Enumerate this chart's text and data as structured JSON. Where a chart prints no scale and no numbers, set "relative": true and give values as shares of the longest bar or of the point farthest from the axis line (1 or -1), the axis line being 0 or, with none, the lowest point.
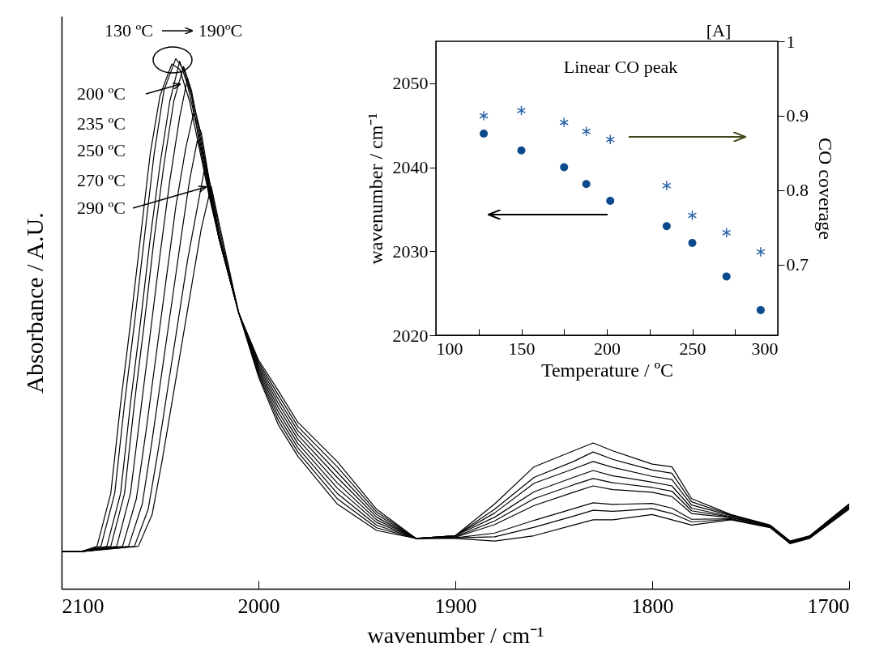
{
  "chart_data": [
    {
      "type": "line",
      "xlabel": "wavenumber / cm⁻¹",
      "ylabel": "Absorbance / A.U.",
      "relative": true,
      "tick_labels": "x",
      "xlim": [
        2100,
        1700
      ],
      "xticks": [
        2100,
        2000,
        1900,
        1800,
        1700
      ],
      "annotations": [
        "130 ºC",
        "190ºC",
        "200 ºC",
        "235 ºC",
        "250 ºC",
        "270 ºC",
        "290 ºC"
      ],
      "series": [
        {
          "color": "#000000",
          "x": [
            2100,
            2090,
            2082,
            2075,
            2070,
            2065,
            2060,
            2055,
            2050,
            2044,
            2040,
            2035,
            2030,
            2025,
            2020,
            2010,
            2000,
            1990,
            1980,
            1960,
            1940,
            1920,
            1900,
            1880,
            1860,
            1840,
            1830,
            1820,
            1800,
            1790,
            1780,
            1760,
            1740,
            1730,
            1720,
            1700
          ],
          "values": [
            0.07,
            0.07,
            0.08,
            0.18,
            0.35,
            0.5,
            0.66,
            0.82,
            0.93,
            0.99,
            0.98,
            0.92,
            0.83,
            0.74,
            0.66,
            0.52,
            0.4,
            0.31,
            0.25,
            0.16,
            0.11,
            0.095,
            0.1,
            0.16,
            0.23,
            0.26,
            0.275,
            0.26,
            0.235,
            0.23,
            0.17,
            0.14,
            0.12,
            0.09,
            0.1,
            0.16
          ]
        },
        {
          "color": "#000000",
          "x": [
            2100,
            2090,
            2080,
            2073,
            2068,
            2063,
            2058,
            2053,
            2048,
            2042,
            2038,
            2034,
            2030,
            2025,
            2020,
            2010,
            2000,
            1990,
            1980,
            1960,
            1940,
            1920,
            1900,
            1880,
            1860,
            1840,
            1830,
            1820,
            1800,
            1790,
            1780,
            1760,
            1740,
            1730,
            1720,
            1700
          ],
          "values": [
            0.07,
            0.07,
            0.08,
            0.18,
            0.35,
            0.5,
            0.66,
            0.82,
            0.94,
            1.0,
            0.98,
            0.93,
            0.84,
            0.745,
            0.66,
            0.52,
            0.404,
            0.318,
            0.258,
            0.17,
            0.115,
            0.095,
            0.1,
            0.15,
            0.21,
            0.24,
            0.258,
            0.244,
            0.224,
            0.218,
            0.164,
            0.139,
            0.119,
            0.089,
            0.099,
            0.159
          ]
        },
        {
          "color": "#000000",
          "x": [
            2100,
            2090,
            2077,
            2070,
            2065,
            2060,
            2055,
            2050,
            2045,
            2040,
            2036,
            2030,
            2025,
            2020,
            2010,
            2000,
            1990,
            1980,
            1960,
            1940,
            1920,
            1900,
            1880,
            1860,
            1840,
            1830,
            1820,
            1800,
            1790,
            1780,
            1760,
            1740,
            1730,
            1720,
            1700
          ],
          "values": [
            0.07,
            0.07,
            0.08,
            0.18,
            0.35,
            0.5,
            0.66,
            0.8,
            0.92,
            0.995,
            0.95,
            0.85,
            0.75,
            0.66,
            0.52,
            0.408,
            0.326,
            0.266,
            0.18,
            0.12,
            0.095,
            0.1,
            0.143,
            0.199,
            0.226,
            0.24,
            0.229,
            0.212,
            0.206,
            0.158,
            0.138,
            0.119,
            0.089,
            0.099,
            0.158
          ]
        },
        {
          "color": "#000000",
          "x": [
            2100,
            2090,
            2075,
            2068,
            2063,
            2058,
            2053,
            2048,
            2043,
            2038,
            2034,
            2030,
            2025,
            2020,
            2010,
            2000,
            1990,
            1980,
            1960,
            1940,
            1920,
            1900,
            1880,
            1860,
            1840,
            1830,
            1820,
            1800,
            1790,
            1780,
            1760,
            1740,
            1730,
            1720,
            1700
          ],
          "values": [
            0.07,
            0.07,
            0.08,
            0.18,
            0.35,
            0.5,
            0.66,
            0.8,
            0.92,
            0.985,
            0.94,
            0.86,
            0.755,
            0.66,
            0.52,
            0.412,
            0.334,
            0.274,
            0.19,
            0.125,
            0.095,
            0.1,
            0.135,
            0.183,
            0.21,
            0.223,
            0.213,
            0.201,
            0.194,
            0.152,
            0.136,
            0.118,
            0.088,
            0.098,
            0.156
          ]
        },
        {
          "color": "#000000",
          "x": [
            2100,
            2090,
            2072,
            2065,
            2060,
            2055,
            2050,
            2045,
            2040,
            2036,
            2030,
            2025,
            2020,
            2010,
            2000,
            1990,
            1980,
            1960,
            1940,
            1920,
            1900,
            1880,
            1860,
            1840,
            1830,
            1820,
            1800,
            1790,
            1780,
            1760,
            1740,
            1730,
            1720,
            1700
          ],
          "values": [
            0.07,
            0.07,
            0.08,
            0.18,
            0.33,
            0.48,
            0.63,
            0.77,
            0.89,
            0.963,
            0.87,
            0.76,
            0.66,
            0.52,
            0.416,
            0.342,
            0.282,
            0.2,
            0.13,
            0.095,
            0.098,
            0.128,
            0.17,
            0.196,
            0.208,
            0.2,
            0.191,
            0.184,
            0.147,
            0.135,
            0.118,
            0.088,
            0.098,
            0.155
          ]
        },
        {
          "color": "#000000",
          "x": [
            2100,
            2090,
            2069,
            2062,
            2057,
            2052,
            2047,
            2042,
            2037,
            2033,
            2029,
            2025,
            2020,
            2010,
            2000,
            1990,
            1980,
            1960,
            1940,
            1920,
            1900,
            1880,
            1860,
            1840,
            1830,
            1820,
            1800,
            1790,
            1780,
            1760,
            1740,
            1730,
            1720,
            1700
          ],
          "values": [
            0.07,
            0.07,
            0.08,
            0.17,
            0.3,
            0.44,
            0.58,
            0.72,
            0.83,
            0.896,
            0.86,
            0.77,
            0.665,
            0.52,
            0.42,
            0.35,
            0.29,
            0.21,
            0.135,
            0.095,
            0.097,
            0.121,
            0.157,
            0.182,
            0.194,
            0.187,
            0.182,
            0.174,
            0.142,
            0.134,
            0.117,
            0.087,
            0.097,
            0.154
          ]
        },
        {
          "color": "#000000",
          "x": [
            2100,
            2090,
            2066,
            2059,
            2054,
            2049,
            2044,
            2039,
            2035,
            2031,
            2027,
            2023,
            2020,
            2010,
            2000,
            1990,
            1980,
            1960,
            1940,
            1920,
            1900,
            1880,
            1860,
            1840,
            1830,
            1820,
            1800,
            1790,
            1780,
            1760,
            1740,
            1730,
            1720,
            1700
          ],
          "values": [
            0.07,
            0.07,
            0.08,
            0.16,
            0.28,
            0.41,
            0.54,
            0.67,
            0.77,
            0.846,
            0.81,
            0.73,
            0.67,
            0.52,
            0.424,
            0.358,
            0.298,
            0.22,
            0.14,
            0.095,
            0.096,
            0.105,
            0.129,
            0.151,
            0.162,
            0.159,
            0.161,
            0.152,
            0.131,
            0.132,
            0.116,
            0.086,
            0.096,
            0.152
          ]
        },
        {
          "color": "#000000",
          "x": [
            2100,
            2090,
            2063,
            2056,
            2051,
            2046,
            2041,
            2036,
            2031,
            2027,
            2023,
            2020,
            2010,
            2000,
            1990,
            1980,
            1960,
            1940,
            1920,
            1900,
            1880,
            1860,
            1840,
            1830,
            1820,
            1800,
            1790,
            1780,
            1760,
            1740,
            1730,
            1720,
            1700
          ],
          "values": [
            0.07,
            0.07,
            0.08,
            0.15,
            0.26,
            0.38,
            0.5,
            0.62,
            0.72,
            0.8,
            0.74,
            0.68,
            0.52,
            0.428,
            0.366,
            0.306,
            0.23,
            0.145,
            0.095,
            0.096,
            0.098,
            0.116,
            0.137,
            0.148,
            0.146,
            0.151,
            0.142,
            0.126,
            0.131,
            0.116,
            0.086,
            0.096,
            0.151
          ]
        },
        {
          "color": "#000000",
          "x": [
            2100,
            2090,
            2061,
            2054,
            2049,
            2044,
            2039,
            2034,
            2029,
            2024,
            2020,
            2010,
            2000,
            1990,
            1980,
            1960,
            1940,
            1920,
            1900,
            1880,
            1860,
            1840,
            1830,
            1820,
            1800,
            1790,
            1780,
            1760,
            1740,
            1730,
            1720,
            1700
          ],
          "values": [
            0.07,
            0.07,
            0.08,
            0.14,
            0.24,
            0.35,
            0.46,
            0.57,
            0.68,
            0.759,
            0.69,
            0.52,
            0.432,
            0.374,
            0.314,
            0.24,
            0.15,
            0.095,
            0.095,
            0.09,
            0.1,
            0.12,
            0.13,
            0.13,
            0.14,
            0.13,
            0.12,
            0.13,
            0.115,
            0.085,
            0.095,
            0.15
          ]
        }
      ]
    },
    {
      "type": "scatter",
      "xlabel": "Temperature / ºC",
      "ylabel": "wavenumber / cm⁻¹",
      "y2label": "CO coverage",
      "annotations": [
        "[A]",
        "Linear CO peak"
      ],
      "x": [
        128,
        150,
        175,
        188,
        202,
        235,
        250,
        270,
        290
      ],
      "xlim": [
        100,
        300
      ],
      "xticks": [
        100,
        {
          "value": 125,
          "label": null
        },
        150,
        {
          "value": 175,
          "label": null
        },
        200,
        {
          "value": 225,
          "label": null
        },
        250,
        {
          "value": 275,
          "label": null
        },
        300
      ],
      "ylim": [
        2020,
        2055
      ],
      "yticks": [
        2020,
        2030,
        2040,
        2050
      ],
      "y2lim": [
        0.605,
        1
      ],
      "y2ticks": [
        0.7,
        0.8,
        0.9,
        1
      ],
      "series": [
        {
          "color": "#0b4a8c",
          "marker": "circle",
          "values": [
            2044,
            2042,
            2040,
            2038,
            2036,
            2033,
            2031,
            2027,
            2023
          ]
        },
        {
          "color": "#2b64a6",
          "marker": "cross",
          "axis": "y2",
          "values": [
            0.9,
            0.907,
            0.891,
            0.879,
            0.868,
            0.806,
            0.766,
            0.743,
            0.717
          ]
        }
      ]
    }
  ]
}
